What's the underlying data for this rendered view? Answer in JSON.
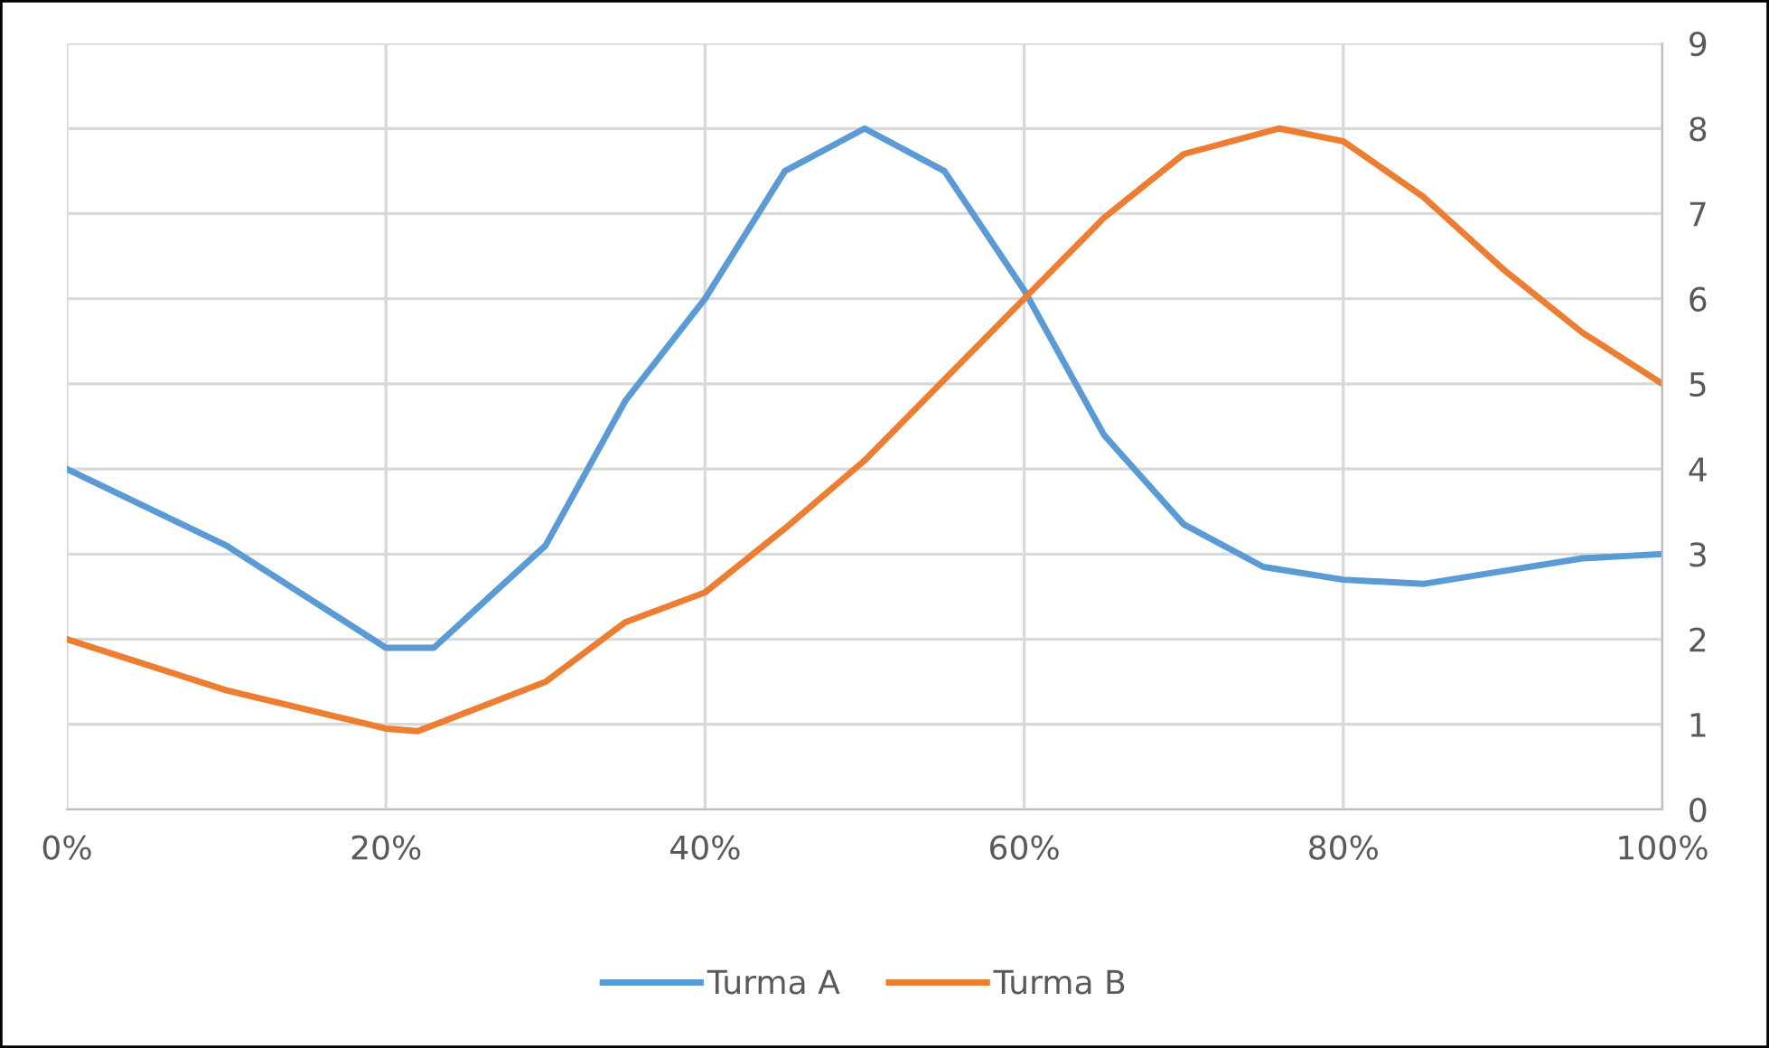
{
  "chart_data": {
    "type": "line",
    "x": [
      0,
      10,
      20,
      23,
      30,
      35,
      40,
      45,
      50,
      55,
      60,
      65,
      70,
      75,
      80,
      85,
      90,
      95,
      100
    ],
    "series": [
      {
        "name": "Turma A",
        "color": "#5b9bd5",
        "values": [
          4.0,
          3.1,
          1.9,
          1.9,
          3.1,
          4.8,
          6.0,
          7.5,
          8.0,
          7.5,
          6.1,
          4.4,
          3.35,
          2.85,
          2.7,
          2.65,
          2.8,
          2.95,
          3.0
        ]
      },
      {
        "name": "Turma B",
        "color": "#ed7d31",
        "x": [
          0,
          10,
          20,
          22,
          30,
          35,
          40,
          45,
          50,
          55,
          60,
          65,
          70,
          76,
          80,
          85,
          90,
          95,
          100
        ],
        "values": [
          2.0,
          1.4,
          0.95,
          0.92,
          1.5,
          2.2,
          2.55,
          3.3,
          4.1,
          5.05,
          6.0,
          6.95,
          7.7,
          8.0,
          7.85,
          7.2,
          6.35,
          5.6,
          5.0
        ]
      }
    ],
    "xlim": [
      0,
      100
    ],
    "xticks": [
      {
        "value": 0,
        "label": "0%"
      },
      {
        "value": 20,
        "label": "20%"
      },
      {
        "value": 40,
        "label": "40%"
      },
      {
        "value": 60,
        "label": "60%"
      },
      {
        "value": 80,
        "label": "80%"
      },
      {
        "value": 100,
        "label": "100%"
      }
    ],
    "ylim": [
      0,
      9
    ],
    "yticks": [
      0,
      1,
      2,
      3,
      4,
      5,
      6,
      7,
      8,
      9
    ],
    "grid": true,
    "legend": "bottom",
    "marker": "none",
    "line_style": "solid"
  }
}
